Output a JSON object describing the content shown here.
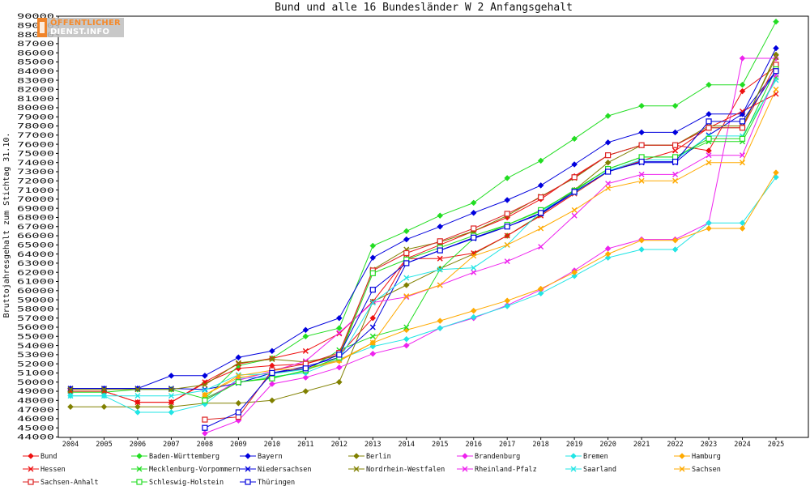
{
  "logo": {
    "line1": "ÖFFENTLICHER",
    "line2": "DIENST.INFO"
  },
  "chart_data": {
    "type": "line",
    "title": "Bund und alle 16 Bundesländer W 2 Anfangsgehalt",
    "xlabel": "",
    "ylabel": "Bruttojahresgehalt zum Stichtag 31.10.",
    "ylim": [
      44000,
      90000
    ],
    "grid": false,
    "legend_position": "bottom",
    "x": [
      2004,
      2005,
      2006,
      2007,
      2008,
      2009,
      2010,
      2011,
      2012,
      2013,
      2014,
      2015,
      2016,
      2017,
      2018,
      2019,
      2020,
      2021,
      2022,
      2023,
      2024,
      2025
    ],
    "y_ticks": [
      44000,
      45000,
      46000,
      47000,
      48000,
      49000,
      50000,
      51000,
      52000,
      53000,
      54000,
      55000,
      56000,
      57000,
      58000,
      59000,
      60000,
      61000,
      62000,
      63000,
      64000,
      65000,
      66000,
      67000,
      68000,
      69000,
      70000,
      71000,
      72000,
      73000,
      74000,
      75000,
      76000,
      77000,
      78000,
      79000,
      80000,
      81000,
      82000,
      83000,
      84000,
      85000,
      86000,
      87000,
      88000,
      89000,
      90000
    ],
    "series": [
      {
        "name": "Bund",
        "color": "#ee1111",
        "marker": "diamond",
        "values": [
          49000,
          49000,
          47800,
          47800,
          49900,
          51500,
          51800,
          52000,
          53000,
          57000,
          63500,
          65000,
          66500,
          68000,
          70000,
          72500,
          74800,
          75900,
          75900,
          75300,
          81800,
          84500
        ]
      },
      {
        "name": "Baden-Württemberg",
        "color": "#22dd22",
        "marker": "diamond",
        "values": [
          48900,
          48900,
          49200,
          49200,
          48200,
          51800,
          52600,
          55000,
          55900,
          64900,
          66500,
          68200,
          69600,
          72300,
          74200,
          76600,
          79100,
          80200,
          80200,
          82500,
          82500,
          89400
        ]
      },
      {
        "name": "Bayern",
        "color": "#0000dd",
        "marker": "diamond",
        "values": [
          49300,
          49300,
          49300,
          50700,
          50700,
          52700,
          53400,
          55700,
          57000,
          63600,
          65600,
          67000,
          68500,
          69900,
          71500,
          73800,
          76200,
          77300,
          77300,
          79300,
          79300,
          86500
        ]
      },
      {
        "name": "Berlin",
        "color": "#808000",
        "marker": "diamond",
        "values": [
          47300,
          47300,
          47300,
          47300,
          47700,
          47700,
          48000,
          49000,
          50000,
          58800,
          60600,
          62400,
          64000,
          66000,
          68300,
          71000,
          74000,
          75900,
          75900,
          77800,
          77800,
          85800
        ]
      },
      {
        "name": "Brandenburg",
        "color": "#ee22ee",
        "marker": "diamond",
        "values": [
          null,
          null,
          null,
          null,
          44400,
          45800,
          49800,
          50500,
          51600,
          53100,
          54000,
          55900,
          57000,
          58400,
          60100,
          62200,
          64600,
          65600,
          65600,
          67400,
          85400,
          85400
        ]
      },
      {
        "name": "Bremen",
        "color": "#22e5e5",
        "marker": "diamond",
        "values": [
          48500,
          48500,
          46700,
          46700,
          47600,
          50400,
          50600,
          51000,
          52500,
          53900,
          54700,
          55900,
          57100,
          58300,
          59700,
          61600,
          63600,
          64500,
          64500,
          67400,
          67400,
          72400
        ]
      },
      {
        "name": "Hamburg",
        "color": "#ffaa00",
        "marker": "diamond",
        "values": [
          null,
          null,
          null,
          null,
          48600,
          50500,
          51000,
          51400,
          52300,
          54300,
          55700,
          56700,
          57800,
          58900,
          60200,
          62000,
          64000,
          65500,
          65500,
          66800,
          66800,
          72900
        ]
      },
      {
        "name": "Hessen",
        "color": "#ee1111",
        "marker": "cross",
        "values": [
          49000,
          49000,
          47800,
          47800,
          50000,
          52000,
          52600,
          53400,
          55300,
          58800,
          63500,
          63500,
          64100,
          66000,
          68200,
          70600,
          73000,
          74200,
          75300,
          77800,
          79600,
          81500
        ]
      },
      {
        "name": "Mecklenburg-Vorpommern",
        "color": "#22dd22",
        "marker": "cross",
        "values": [
          null,
          null,
          null,
          null,
          48200,
          50000,
          50500,
          51200,
          53500,
          55000,
          56000,
          62300,
          65700,
          67200,
          68700,
          71000,
          73300,
          74600,
          74600,
          76300,
          76300,
          83300
        ]
      },
      {
        "name": "Niedersachsen",
        "color": "#0000dd",
        "marker": "cross",
        "values": [
          49300,
          49300,
          49300,
          49300,
          49200,
          49900,
          51000,
          51700,
          52700,
          56000,
          63000,
          64400,
          65700,
          67000,
          68400,
          70700,
          73100,
          74000,
          74000,
          77000,
          79300,
          84000
        ]
      },
      {
        "name": "Nordrhein-Westfalen",
        "color": "#808000",
        "marker": "cross",
        "values": [
          49200,
          49200,
          49200,
          49200,
          49700,
          52100,
          52500,
          52200,
          52900,
          62300,
          64500,
          65300,
          66500,
          68200,
          70300,
          72300,
          74800,
          75900,
          75900,
          78000,
          78000,
          85500
        ]
      },
      {
        "name": "Rheinland-Pfalz",
        "color": "#ee22ee",
        "marker": "cross",
        "values": [
          null,
          null,
          null,
          null,
          48000,
          50200,
          51200,
          52300,
          55400,
          58700,
          59300,
          60600,
          62000,
          63200,
          64800,
          68200,
          71700,
          72700,
          72700,
          74800,
          74800,
          83600
        ]
      },
      {
        "name": "Saarland",
        "color": "#22e5e5",
        "marker": "cross",
        "values": [
          48500,
          48500,
          48500,
          48500,
          49100,
          50800,
          50900,
          51400,
          52500,
          58700,
          61400,
          62300,
          62500,
          65000,
          68700,
          70700,
          73100,
          74300,
          74300,
          76900,
          76900,
          83000
        ]
      },
      {
        "name": "Sachsen",
        "color": "#ffaa00",
        "marker": "cross",
        "values": [
          null,
          null,
          null,
          null,
          48600,
          50700,
          51300,
          51500,
          52400,
          54300,
          59400,
          60600,
          63800,
          65000,
          66800,
          68800,
          71200,
          72000,
          72000,
          74000,
          74000,
          82000
        ]
      },
      {
        "name": "Sachsen-Anhalt",
        "color": "#dd2222",
        "marker": "square",
        "values": [
          null,
          null,
          null,
          null,
          45900,
          46200,
          51300,
          52000,
          53200,
          62200,
          64100,
          65400,
          66800,
          68400,
          70200,
          72400,
          74800,
          75900,
          75900,
          77800,
          77800,
          84700
        ]
      },
      {
        "name": "Schleswig-Holstein",
        "color": "#22dd22",
        "marker": "square",
        "values": [
          null,
          null,
          null,
          null,
          48000,
          50000,
          50400,
          51300,
          52700,
          61900,
          63400,
          64700,
          66000,
          67200,
          68800,
          70900,
          73300,
          74600,
          74600,
          76600,
          76600,
          84200
        ]
      },
      {
        "name": "Thüringen",
        "color": "#0000dd",
        "marker": "square",
        "values": [
          null,
          null,
          null,
          null,
          45000,
          46700,
          51000,
          51500,
          53000,
          60100,
          63000,
          64400,
          65800,
          67000,
          68500,
          70800,
          73000,
          74100,
          74100,
          78500,
          78500,
          84000
        ]
      }
    ]
  }
}
